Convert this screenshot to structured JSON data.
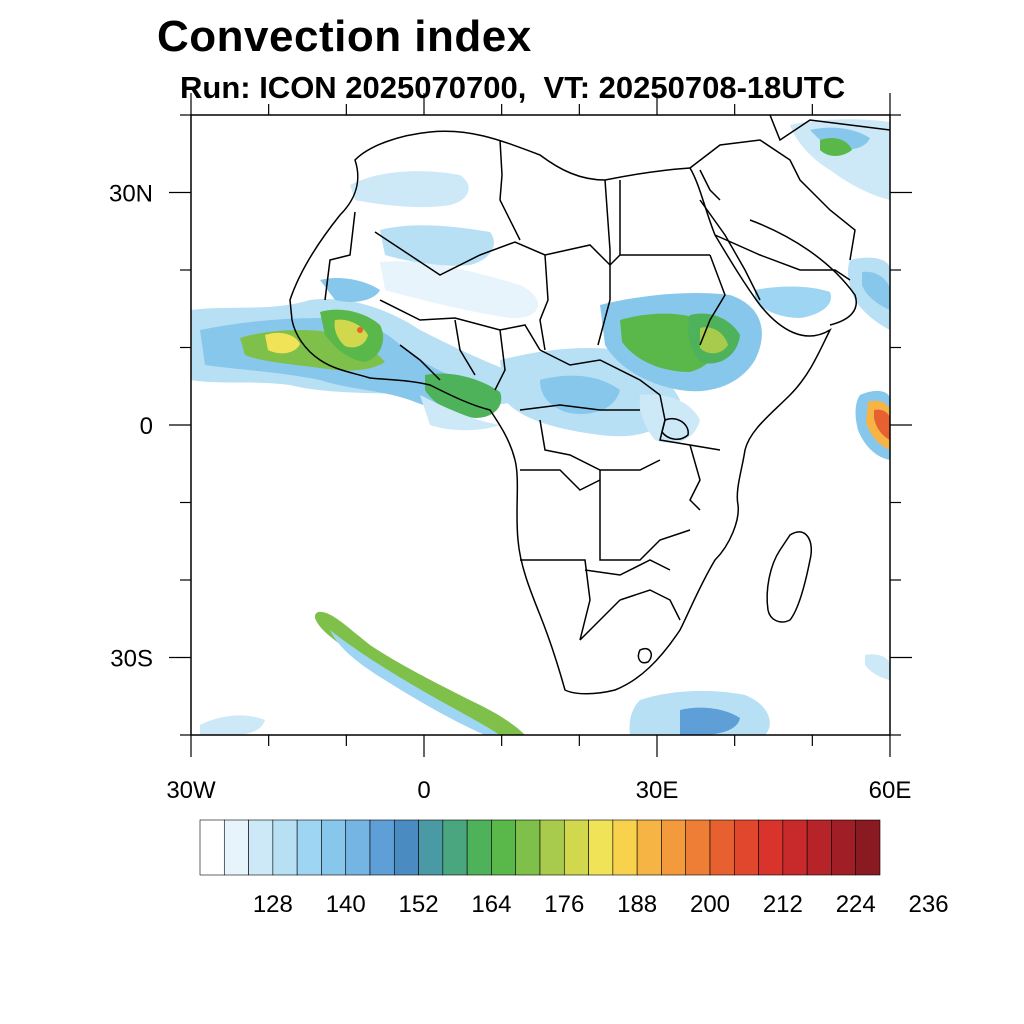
{
  "title": "Convection index",
  "subtitle": "Run: ICON 2025070700,  VT: 20250708-18UTC",
  "map": {
    "lon_range": [
      -30,
      60
    ],
    "lat_range": [
      -40,
      40
    ],
    "lat_tick_labels": [
      {
        "lat": 30,
        "label": "30N"
      },
      {
        "lat": 0,
        "label": "0"
      },
      {
        "lat": -30,
        "label": "30S"
      }
    ],
    "lon_tick_labels": [
      {
        "lon": -30,
        "label": "30W"
      },
      {
        "lon": 0,
        "label": "0"
      },
      {
        "lon": 30,
        "label": "30E"
      },
      {
        "lon": 60,
        "label": "60E"
      }
    ]
  },
  "colorbar": {
    "colors": [
      "#ffffff",
      "#e8f4fb",
      "#cde9f7",
      "#b7e0f5",
      "#9dd5f2",
      "#88c7ec",
      "#75b5e4",
      "#5d9fd6",
      "#4a8cc2",
      "#4a9aa6",
      "#4aa67f",
      "#4eb25b",
      "#5ab84a",
      "#7fc04a",
      "#a8cb4d",
      "#d1d84e",
      "#f1e358",
      "#f8d24c",
      "#f6b444",
      "#f39a3c",
      "#ee7e35",
      "#e7602f",
      "#e0472d",
      "#d8342c",
      "#c82a2c",
      "#b6242a",
      "#a01f27",
      "#8a1a22"
    ],
    "labels": [
      "128",
      "140",
      "152",
      "164",
      "176",
      "188",
      "200",
      "212",
      "224",
      "236"
    ]
  }
}
